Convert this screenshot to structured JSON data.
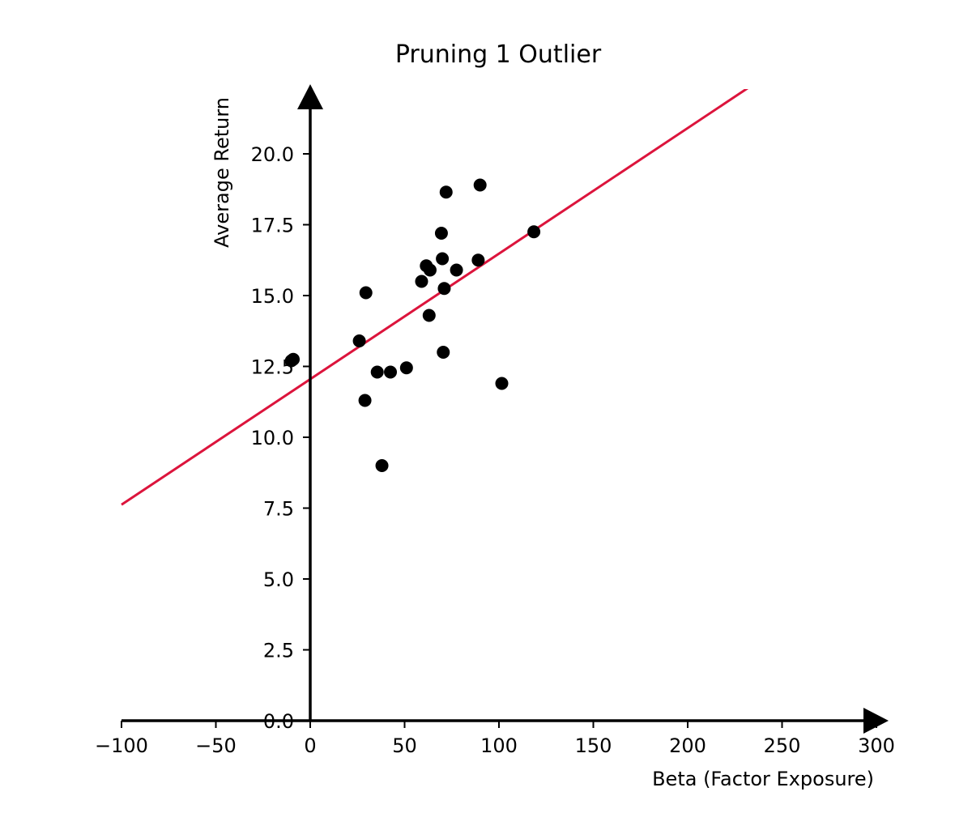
{
  "chart_data": {
    "type": "scatter",
    "title": "Pruning 1 Outlier",
    "xlabel": "Beta (Factor Exposure)",
    "ylabel": "Average Return",
    "xlim": [
      -100,
      300
    ],
    "ylim": [
      0,
      22
    ],
    "grid": false,
    "xticks": [
      -100,
      -50,
      0,
      50,
      100,
      150,
      200,
      250,
      300
    ],
    "xtick_labels": [
      "−100",
      "−50",
      "0",
      "50",
      "100",
      "150",
      "200",
      "250",
      "300"
    ],
    "yticks": [
      0,
      2.5,
      5,
      7.5,
      10,
      12.5,
      15,
      17.5,
      20
    ],
    "ytick_labels": [
      "0.0",
      "2.5",
      "5.0",
      "7.5",
      "10.0",
      "12.5",
      "15.0",
      "17.5",
      "20.0"
    ],
    "points": [
      {
        "x": -10,
        "y": 12.7
      },
      {
        "x": -9,
        "y": 12.75
      },
      {
        "x": 26,
        "y": 13.4
      },
      {
        "x": 29.5,
        "y": 15.1
      },
      {
        "x": 29,
        "y": 11.3
      },
      {
        "x": 35.5,
        "y": 12.3
      },
      {
        "x": 38,
        "y": 9.0
      },
      {
        "x": 42.5,
        "y": 12.3
      },
      {
        "x": 51,
        "y": 12.45
      },
      {
        "x": 59,
        "y": 15.5
      },
      {
        "x": 61.5,
        "y": 16.05
      },
      {
        "x": 63.5,
        "y": 15.9
      },
      {
        "x": 63,
        "y": 14.3
      },
      {
        "x": 69.5,
        "y": 17.2
      },
      {
        "x": 70,
        "y": 16.3
      },
      {
        "x": 71,
        "y": 15.25
      },
      {
        "x": 70.5,
        "y": 13.0
      },
      {
        "x": 72,
        "y": 18.65
      },
      {
        "x": 77.5,
        "y": 15.9
      },
      {
        "x": 89,
        "y": 16.25
      },
      {
        "x": 90,
        "y": 18.9
      },
      {
        "x": 101.5,
        "y": 11.9
      },
      {
        "x": 118.5,
        "y": 17.25
      }
    ],
    "fit_line": {
      "intercept": 12.05,
      "slope": 0.0443,
      "color": "#dc143c"
    },
    "point_color": "#000000"
  }
}
